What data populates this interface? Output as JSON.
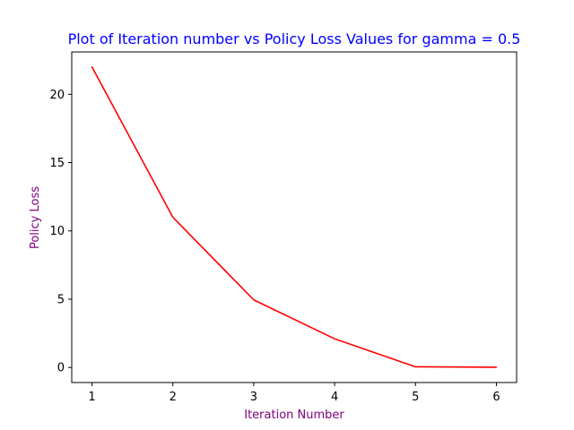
{
  "chart_data": {
    "type": "line",
    "title": "Plot of Iteration number vs Policy Loss Values for gamma = 0.5",
    "xlabel": "Iteration Number",
    "ylabel": "Policy Loss",
    "x": [
      1,
      2,
      3,
      4,
      5,
      6
    ],
    "series": [
      {
        "values": [
          22,
          11,
          4.95,
          2.1,
          0.05,
          0.02
        ],
        "color": "#ff0000"
      }
    ],
    "xticks": [
      "1",
      "2",
      "3",
      "4",
      "5",
      "6"
    ],
    "yticks": [
      "0",
      "5",
      "10",
      "15",
      "20"
    ],
    "xlim": [
      0.75,
      6.25
    ],
    "ylim": [
      -1.1,
      23.1
    ],
    "grid": false,
    "title_color": "#0000ff",
    "label_color": "#800080"
  }
}
